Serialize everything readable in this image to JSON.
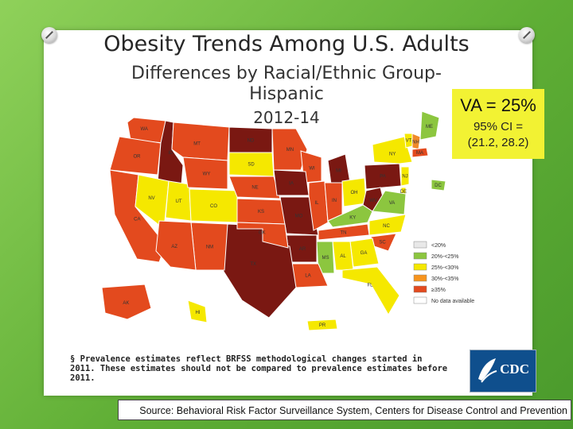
{
  "slide": {
    "title": "Obesity Trends Among U.S. Adults",
    "subtitle_line1": "Differences by Racial/Ethnic Group-",
    "subtitle_line2": "Hispanic",
    "years": "2012-14"
  },
  "va_box": {
    "headline": "VA = 25%",
    "ci_line1": "95% CI =",
    "ci_line2": "(21.2, 28.2)"
  },
  "legend": {
    "items": [
      {
        "label": "<20%",
        "color": "#e8e8e8"
      },
      {
        "label": "20%-<25%",
        "color": "#8cc63f"
      },
      {
        "label": "25%-<30%",
        "color": "#f5e800"
      },
      {
        "label": "30%-<35%",
        "color": "#f7941d"
      },
      {
        "label": "≥35%",
        "color": "#e34a1e"
      },
      {
        "label": "No data available",
        "color": "#ffffff"
      }
    ]
  },
  "colors": {
    "y": "#f5e800",
    "g": "#8cc63f",
    "o": "#f08a2a",
    "r": "#e34a1e",
    "d": "#7a1812"
  },
  "states": [
    {
      "abbr": "WA",
      "c": "r"
    },
    {
      "abbr": "OR",
      "c": "r"
    },
    {
      "abbr": "ID",
      "c": "d"
    },
    {
      "abbr": "MT",
      "c": "r"
    },
    {
      "abbr": "ND",
      "c": "d"
    },
    {
      "abbr": "MN",
      "c": "r"
    },
    {
      "abbr": "WI",
      "c": "r"
    },
    {
      "abbr": "MI",
      "c": "d"
    },
    {
      "abbr": "CA",
      "c": "r"
    },
    {
      "abbr": "NV",
      "c": "y"
    },
    {
      "abbr": "UT",
      "c": "y"
    },
    {
      "abbr": "WY",
      "c": "r"
    },
    {
      "abbr": "SD",
      "c": "y"
    },
    {
      "abbr": "CO",
      "c": "y"
    },
    {
      "abbr": "NE",
      "c": "r"
    },
    {
      "abbr": "KS",
      "c": "r"
    },
    {
      "abbr": "IA",
      "c": "d"
    },
    {
      "abbr": "MO",
      "c": "d"
    },
    {
      "abbr": "IL",
      "c": "r"
    },
    {
      "abbr": "IN",
      "c": "r"
    },
    {
      "abbr": "OH",
      "c": "y"
    },
    {
      "abbr": "PA",
      "c": "d"
    },
    {
      "abbr": "NY",
      "c": "y"
    },
    {
      "abbr": "ME",
      "c": "g"
    },
    {
      "abbr": "VT",
      "c": "y"
    },
    {
      "abbr": "NH",
      "c": "o"
    },
    {
      "abbr": "MA",
      "c": "r"
    },
    {
      "abbr": "NJ",
      "c": "y"
    },
    {
      "abbr": "DE",
      "c": "y"
    },
    {
      "abbr": "DC",
      "c": "g"
    },
    {
      "abbr": "WV",
      "c": "d"
    },
    {
      "abbr": "VA",
      "c": "g"
    },
    {
      "abbr": "KY",
      "c": "g"
    },
    {
      "abbr": "TN",
      "c": "r"
    },
    {
      "abbr": "NC",
      "c": "y"
    },
    {
      "abbr": "SC",
      "c": "r"
    },
    {
      "abbr": "GA",
      "c": "y"
    },
    {
      "abbr": "AL",
      "c": "y"
    },
    {
      "abbr": "MS",
      "c": "g"
    },
    {
      "abbr": "AR",
      "c": "d"
    },
    {
      "abbr": "LA",
      "c": "r"
    },
    {
      "abbr": "TX",
      "c": "d"
    },
    {
      "abbr": "OK",
      "c": "r"
    },
    {
      "abbr": "NM",
      "c": "r"
    },
    {
      "abbr": "AZ",
      "c": "r"
    },
    {
      "abbr": "FL",
      "c": "y"
    },
    {
      "abbr": "AK",
      "c": "r"
    },
    {
      "abbr": "HI",
      "c": "y"
    },
    {
      "abbr": "PR",
      "c": "y"
    }
  ],
  "footnote": "§ Prevalence estimates reflect BRFSS methodological changes started in 2011. These estimates should not be compared to prevalence estimates before 2011.",
  "cdc_logo": "CDC",
  "source": "Source: Behavioral Risk Factor Surveillance System, Centers for Disease Control and Prevention"
}
